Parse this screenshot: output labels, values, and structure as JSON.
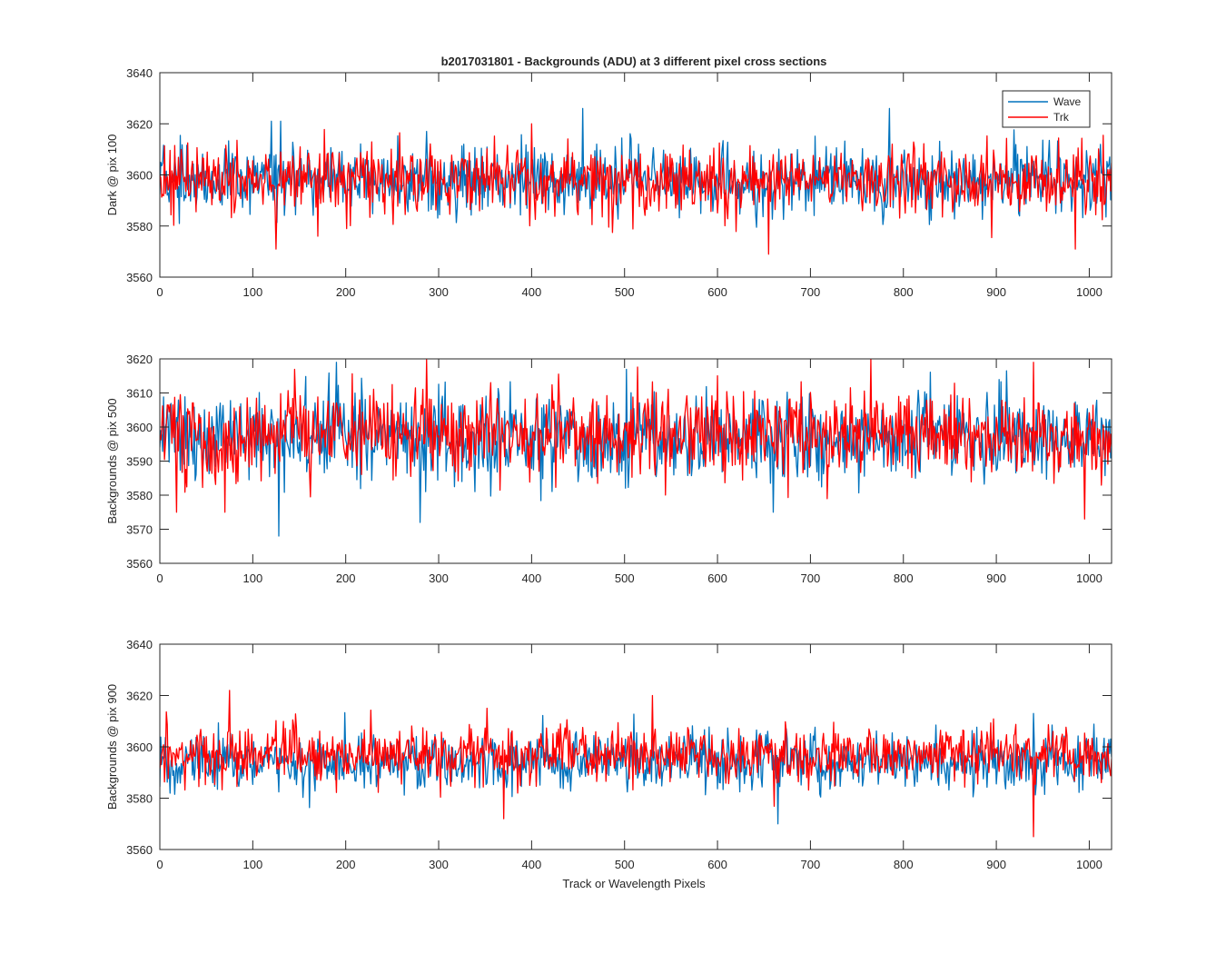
{
  "figure": {
    "title": "b2017031801 - Backgrounds (ADU) at 3 different pixel cross sections",
    "xlabel": "Track or Wavelength Pixels"
  },
  "chart_data": [
    {
      "type": "line",
      "ylabel": "Dark @ pix 100",
      "xlim": [
        0,
        1024
      ],
      "ylim": [
        3560,
        3640
      ],
      "xticks": [
        0,
        100,
        200,
        300,
        400,
        500,
        600,
        700,
        800,
        900,
        1000
      ],
      "yticks": [
        3560,
        3580,
        3600,
        3620,
        3640
      ],
      "legend": {
        "placement": "top-right",
        "entries": [
          "Wave",
          "Trk"
        ]
      },
      "series": [
        {
          "name": "Wave",
          "color": "#0072BD",
          "mean": 3598,
          "sigma": 6.5,
          "marked_points": [
            [
              120,
              3621
            ],
            [
              130,
              3621
            ],
            [
              455,
              3626
            ],
            [
              785,
              3626
            ]
          ]
        },
        {
          "name": "Trk",
          "color": "#FF0000",
          "mean": 3598,
          "sigma": 6.5,
          "marked_points": [
            [
              125,
              3571
            ],
            [
              170,
              3576
            ],
            [
              400,
              3620
            ],
            [
              655,
              3569
            ],
            [
              985,
              3571
            ]
          ]
        }
      ]
    },
    {
      "type": "line",
      "ylabel": "Backgrounds @ pix 500",
      "xlim": [
        0,
        1024
      ],
      "ylim": [
        3560,
        3620
      ],
      "xticks": [
        0,
        100,
        200,
        300,
        400,
        500,
        600,
        700,
        800,
        900,
        1000
      ],
      "yticks": [
        3560,
        3570,
        3580,
        3590,
        3600,
        3610,
        3620
      ],
      "series": [
        {
          "name": "Wave",
          "color": "#0072BD",
          "mean": 3597,
          "sigma": 6.5,
          "marked_points": [
            [
              128,
              3568
            ],
            [
              190,
              3619
            ],
            [
              280,
              3572
            ],
            [
              660,
              3575
            ]
          ]
        },
        {
          "name": "Trk",
          "color": "#FF0000",
          "mean": 3598,
          "sigma": 6.5,
          "marked_points": [
            [
              18,
              3575
            ],
            [
              70,
              3575
            ],
            [
              765,
              3620
            ],
            [
              940,
              3619
            ],
            [
              995,
              3573
            ]
          ]
        }
      ]
    },
    {
      "type": "line",
      "ylabel": "Backgrounds @ pix 900",
      "xlim": [
        0,
        1024
      ],
      "ylim": [
        3560,
        3640
      ],
      "xticks": [
        0,
        100,
        200,
        300,
        400,
        500,
        600,
        700,
        800,
        900,
        1000
      ],
      "yticks": [
        3560,
        3580,
        3600,
        3620,
        3640
      ],
      "series": [
        {
          "name": "Wave",
          "color": "#0072BD",
          "mean": 3594,
          "sigma": 5.5,
          "marked_points": [
            [
              665,
              3570
            ],
            [
              940,
              3613
            ]
          ]
        },
        {
          "name": "Trk",
          "color": "#FF0000",
          "mean": 3597,
          "sigma": 5.5,
          "marked_points": [
            [
              75,
              3622
            ],
            [
              370,
              3572
            ],
            [
              530,
              3620
            ],
            [
              940,
              3565
            ]
          ]
        }
      ]
    }
  ]
}
